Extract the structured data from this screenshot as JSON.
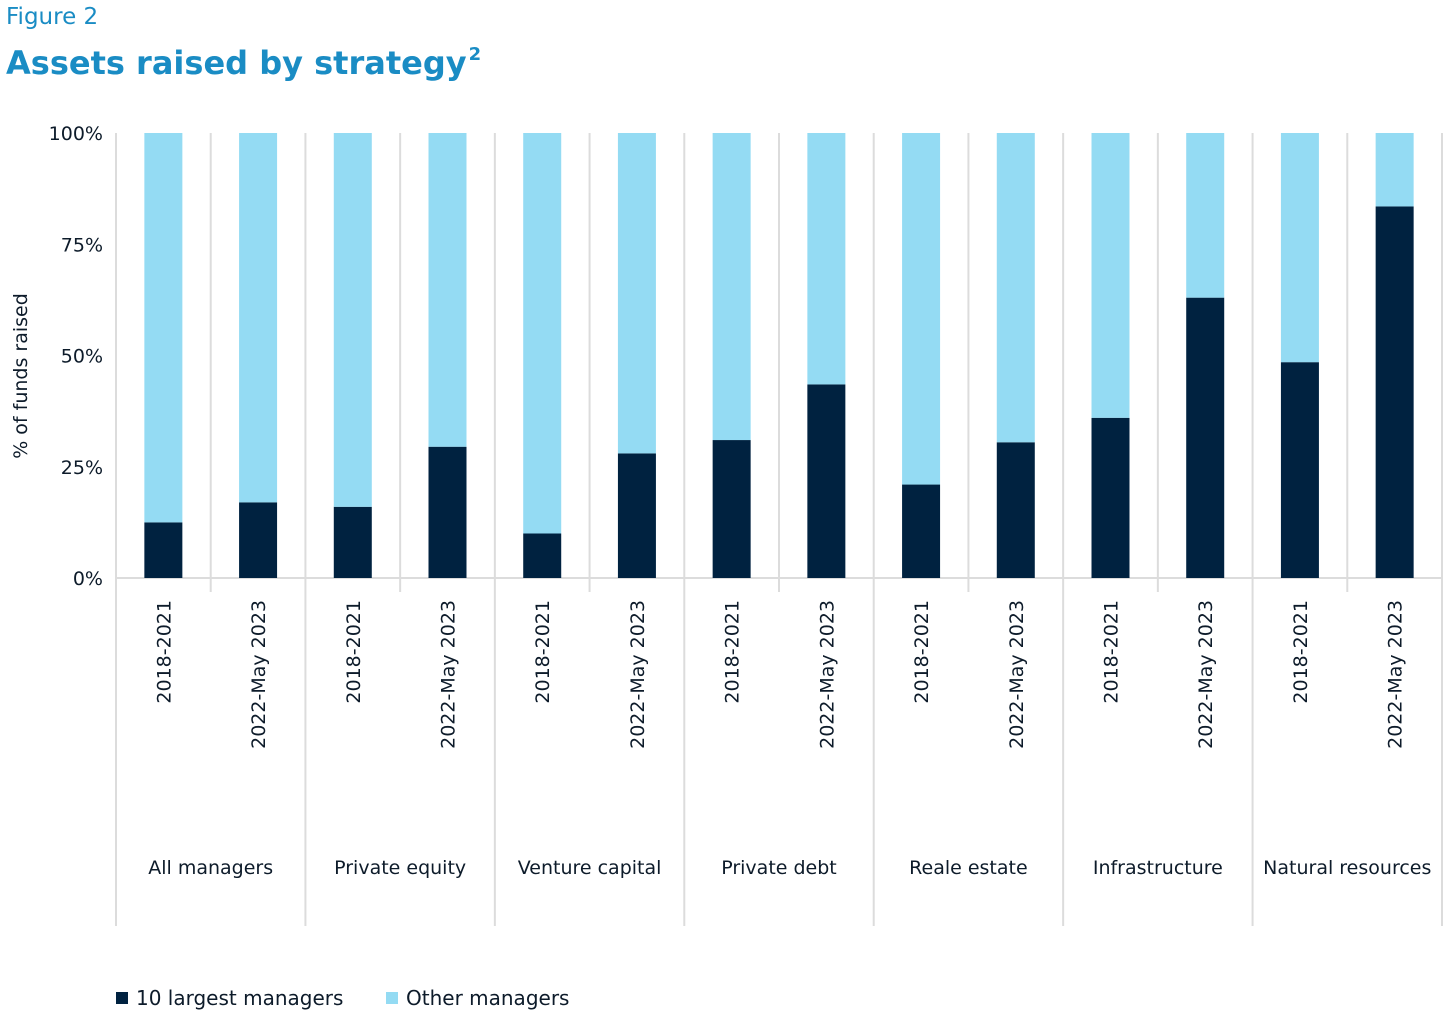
{
  "figure_label": "Figure 2",
  "title": "Assets raised by strategy",
  "title_footnote": "2",
  "colors": {
    "largest": "#002240",
    "other": "#94dbf3",
    "grid": "#dcdcdc",
    "title": "#1a8cc4"
  },
  "chart_data": {
    "type": "bar",
    "stacked": true,
    "ylabel": "% of funds raised",
    "ylim": [
      0,
      100
    ],
    "yticks": [
      "0%",
      "25%",
      "50%",
      "75%",
      "100%"
    ],
    "groups": [
      {
        "name": "All managers",
        "categories": [
          "2018-2021",
          "2022-May 2023"
        ]
      },
      {
        "name": "Private equity",
        "categories": [
          "2018-2021",
          "2022-May 2023"
        ]
      },
      {
        "name": "Venture capital",
        "categories": [
          "2018-2021",
          "2022-May 2023"
        ]
      },
      {
        "name": "Private debt",
        "categories": [
          "2018-2021",
          "2022-May 2023"
        ]
      },
      {
        "name": "Reale estate",
        "categories": [
          "2018-2021",
          "2022-May 2023"
        ]
      },
      {
        "name": "Infrastructure",
        "categories": [
          "2018-2021",
          "2022-May 2023"
        ]
      },
      {
        "name": "Natural resources",
        "categories": [
          "2018-2021",
          "2022-May 2023"
        ]
      }
    ],
    "series": [
      {
        "name": "10 largest managers",
        "values": [
          12.5,
          17,
          16,
          29.5,
          10,
          28,
          31,
          43.5,
          21,
          30.5,
          36,
          63,
          48.5,
          83.5
        ]
      },
      {
        "name": "Other managers",
        "values": [
          87.5,
          83,
          84,
          70.5,
          90,
          72,
          69,
          56.5,
          79,
          69.5,
          64,
          37,
          51.5,
          16.5
        ]
      }
    ],
    "legend_position": "bottom-left",
    "grid": false
  }
}
